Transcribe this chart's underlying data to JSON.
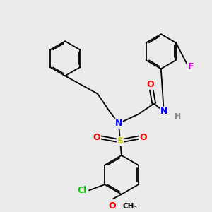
{
  "background_color": "#ebebeb",
  "atom_colors": {
    "O": "#ff0000",
    "N": "#0000ff",
    "S": "#cccc00",
    "Cl": "#00cc00",
    "F": "#cc00cc",
    "H": "#888888",
    "C": "#000000"
  },
  "bonds": [
    {
      "type": "single",
      "from": "ph1_c1",
      "to": "ph1_c2"
    },
    {
      "type": "double",
      "from": "ph1_c2",
      "to": "ph1_c3"
    },
    {
      "type": "single",
      "from": "ph1_c3",
      "to": "ph1_c4"
    },
    {
      "type": "double",
      "from": "ph1_c4",
      "to": "ph1_c5"
    },
    {
      "type": "single",
      "from": "ph1_c5",
      "to": "ph1_c6"
    },
    {
      "type": "double",
      "from": "ph1_c6",
      "to": "ph1_c1"
    }
  ]
}
